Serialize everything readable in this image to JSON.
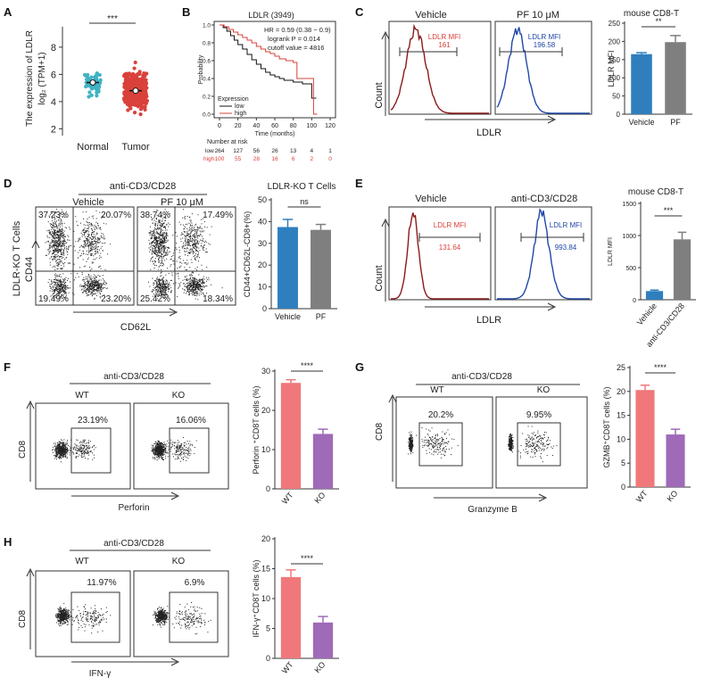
{
  "panel_labels": {
    "A": "A",
    "B": "B",
    "C": "C",
    "D": "D",
    "E": "E",
    "F": "F",
    "G": "G",
    "H": "H"
  },
  "colors": {
    "teal": "#3fb3c4",
    "red": "#d9413a",
    "blue": "#2f7fbe",
    "grey": "#7f7f7f",
    "salmon": "#f0787a",
    "purple": "#9f6ab8",
    "darkred": "#8b1a1a",
    "navy": "#2048a8",
    "dot": "#222222"
  },
  "panelA": {
    "ylabel": "The expression of LDLR",
    "ylabel2": "log₂ (TPM+1)",
    "yticks": [
      2,
      4,
      6,
      8
    ],
    "ylim": [
      1.5,
      9.5
    ],
    "groups": [
      "Normal",
      "Tumor"
    ],
    "significance": "***",
    "normal_center": 5.4,
    "tumor_center": 4.8
  },
  "panelB": {
    "title": "LDLR (3949)",
    "hr": "HR = 0.59 (0.38 − 0.9)",
    "logrank": "logrank P = 0.014",
    "cutoff": "cutoff value = 4816",
    "ylabel": "Probability",
    "xlabel": "Time (months)",
    "yticks": [
      "0.0",
      "0.2",
      "0.4",
      "0.6",
      "0.8",
      "1.0"
    ],
    "xticks": [
      0,
      20,
      40,
      60,
      80,
      100,
      120
    ],
    "legend_title": "Expression",
    "legend": [
      "low",
      "high"
    ],
    "risk_title": "Number at risk",
    "risk_low_label": "low",
    "risk_high_label": "high",
    "risk_low": [
      "264",
      "127",
      "56",
      "26",
      "13",
      "4",
      "1"
    ],
    "risk_high": [
      "100",
      "55",
      "28",
      "16",
      "6",
      "2",
      "0"
    ]
  },
  "panelC": {
    "titles": [
      "Vehicle",
      "PF 10 μM"
    ],
    "mfi_label": "LDLR MFI",
    "mfi_values": [
      "161",
      "196.58"
    ],
    "ylabel": "Count",
    "xlabel": "LDLR",
    "bar_title": "mouse CD8-T",
    "bar_ylabel": "LDLR MFI",
    "significance": "**",
    "chart_data": {
      "type": "bar",
      "categories": [
        "Vehicle",
        "PF"
      ],
      "values": [
        165,
        198
      ],
      "errors": [
        4,
        18
      ],
      "yticks": [
        0,
        50,
        100,
        150,
        200,
        250
      ],
      "ylim": [
        0,
        250
      ]
    }
  },
  "panelD": {
    "header": "anti-CD3/CD28",
    "titles": [
      "Vehicle",
      "PF 10 μM"
    ],
    "ylabel1": "LDLR-KO T Cells",
    "ylabel2": "CD44",
    "xlabel": "CD62L",
    "quadrants_vehicle": [
      "37.23%",
      "20.07%",
      "19.49%",
      "23.20%"
    ],
    "quadrants_pf": [
      "38.74%",
      "17.49%",
      "25.42%",
      "18.34%"
    ],
    "bar_title": "LDLR-KO T Cells",
    "bar_ylabel": "CD44+CD62L-CD8+(%)",
    "significance": "ns",
    "chart_data": {
      "type": "bar",
      "categories": [
        "Vehicle",
        "PF"
      ],
      "values": [
        37.5,
        36.2
      ],
      "errors": [
        3.5,
        2.5
      ],
      "yticks": [
        0,
        10,
        20,
        30,
        40,
        50
      ],
      "ylim": [
        0,
        50
      ]
    }
  },
  "panelE": {
    "titles": [
      "Vehicle",
      "anti-CD3/CD28"
    ],
    "mfi_label": "LDLR MFI",
    "mfi_values": [
      "131.64",
      "993.84"
    ],
    "ylabel": "Count",
    "xlabel": "LDLR",
    "bar_title": "mouse CD8-T",
    "bar_ylabel": "LDLR MFI",
    "significance": "***",
    "chart_data": {
      "type": "bar",
      "categories": [
        "Vehicle",
        "anti-CD3/CD28"
      ],
      "values": [
        135,
        940
      ],
      "errors": [
        15,
        110
      ],
      "yticks": [
        0,
        500,
        1000,
        1500
      ],
      "ylim": [
        0,
        1500
      ]
    }
  },
  "panelF": {
    "header": "anti-CD3/CD28",
    "titles": [
      "WT",
      "KO"
    ],
    "gates": [
      "23.19%",
      "16.06%"
    ],
    "ylabel": "CD8",
    "xlabel": "Perforin",
    "bar_ylabel": "Perforin ⁺CD8T cells (%)",
    "significance": "****",
    "chart_data": {
      "type": "bar",
      "categories": [
        "WT",
        "KO"
      ],
      "values": [
        27,
        14
      ],
      "errors": [
        0.8,
        1.2
      ],
      "yticks": [
        0,
        10,
        20,
        30
      ],
      "ylim": [
        0,
        30
      ]
    }
  },
  "panelG": {
    "header": "anti-CD3/CD28",
    "titles": [
      "WT",
      "KO"
    ],
    "gates": [
      "20.2%",
      "9.95%"
    ],
    "ylabel": "CD8",
    "xlabel": "Granzyme B",
    "bar_ylabel": "GZMB⁺CD8T cells (%)",
    "significance": "****",
    "chart_data": {
      "type": "bar",
      "categories": [
        "WT",
        "KO"
      ],
      "values": [
        20.3,
        11
      ],
      "errors": [
        1,
        1.1
      ],
      "yticks": [
        0,
        5,
        10,
        15,
        20,
        25
      ],
      "ylim": [
        0,
        25
      ]
    }
  },
  "panelH": {
    "header": "anti-CD3/CD28",
    "titles": [
      "WT",
      "KO"
    ],
    "gates": [
      "11.97%",
      "6.9%"
    ],
    "ylabel": "CD8",
    "xlabel": "IFN-γ",
    "bar_ylabel": "IFN-γ⁺CD8T cells (%)",
    "significance": "****",
    "chart_data": {
      "type": "bar",
      "categories": [
        "WT",
        "KO"
      ],
      "values": [
        13.6,
        6
      ],
      "errors": [
        1.2,
        1
      ],
      "yticks": [
        0,
        5,
        10,
        15,
        20
      ],
      "ylim": [
        0,
        20
      ]
    }
  }
}
